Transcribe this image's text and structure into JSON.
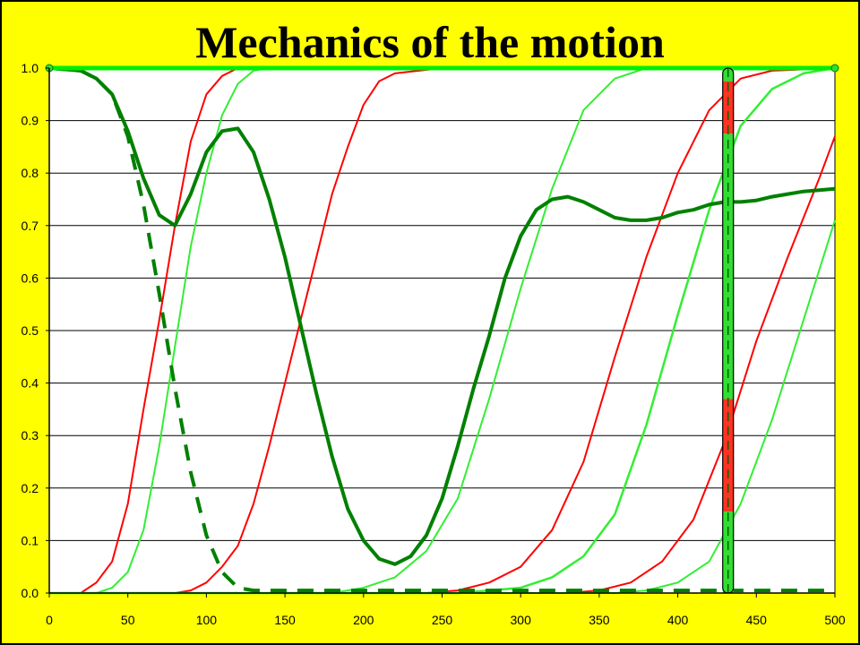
{
  "chart_data": {
    "type": "line",
    "title": "Mechanics of the motion",
    "xlabel": "",
    "ylabel": "",
    "xlim": [
      0,
      500
    ],
    "ylim": [
      0,
      1
    ],
    "xticks": [
      0,
      50,
      100,
      150,
      200,
      250,
      300,
      350,
      400,
      450,
      500
    ],
    "yticks": [
      "0.0",
      "0.1",
      "0.2",
      "0.3",
      "0.4",
      "0.5",
      "0.6",
      "0.7",
      "0.8",
      "0.9",
      "1.0"
    ],
    "grid": "horizontal",
    "background": "#ffff00",
    "plot_background": "#ffffff",
    "series": [
      {
        "color": "#ff0000",
        "width": 2,
        "dash": "",
        "points": [
          [
            0,
            0
          ],
          [
            20,
            0
          ],
          [
            30,
            0.02
          ],
          [
            40,
            0.06
          ],
          [
            50,
            0.17
          ],
          [
            60,
            0.35
          ],
          [
            70,
            0.52
          ],
          [
            80,
            0.7
          ],
          [
            90,
            0.86
          ],
          [
            100,
            0.95
          ],
          [
            110,
            0.985
          ],
          [
            120,
            1.0
          ],
          [
            500,
            1.0
          ]
        ]
      },
      {
        "color": "#33ee33",
        "width": 2,
        "dash": "",
        "points": [
          [
            0,
            0
          ],
          [
            30,
            0
          ],
          [
            40,
            0.01
          ],
          [
            50,
            0.04
          ],
          [
            60,
            0.12
          ],
          [
            70,
            0.28
          ],
          [
            80,
            0.47
          ],
          [
            90,
            0.66
          ],
          [
            100,
            0.8
          ],
          [
            110,
            0.91
          ],
          [
            120,
            0.97
          ],
          [
            130,
            0.995
          ],
          [
            140,
            1.0
          ],
          [
            500,
            1.0
          ]
        ]
      },
      {
        "color": "#ff0000",
        "width": 2,
        "dash": "",
        "points": [
          [
            0,
            0
          ],
          [
            80,
            0
          ],
          [
            90,
            0.005
          ],
          [
            100,
            0.02
          ],
          [
            110,
            0.05
          ],
          [
            120,
            0.09
          ],
          [
            130,
            0.17
          ],
          [
            140,
            0.28
          ],
          [
            150,
            0.4
          ],
          [
            160,
            0.52
          ],
          [
            170,
            0.64
          ],
          [
            180,
            0.76
          ],
          [
            190,
            0.85
          ],
          [
            200,
            0.93
          ],
          [
            210,
            0.975
          ],
          [
            220,
            0.99
          ],
          [
            250,
            1.0
          ],
          [
            500,
            1.0
          ]
        ]
      },
      {
        "color": "#33ee33",
        "width": 2,
        "dash": "",
        "points": [
          [
            0,
            0
          ],
          [
            150,
            0
          ],
          [
            180,
            0
          ],
          [
            200,
            0.01
          ],
          [
            220,
            0.03
          ],
          [
            240,
            0.08
          ],
          [
            260,
            0.18
          ],
          [
            280,
            0.37
          ],
          [
            300,
            0.58
          ],
          [
            320,
            0.77
          ],
          [
            340,
            0.92
          ],
          [
            360,
            0.98
          ],
          [
            380,
            1.0
          ],
          [
            500,
            1.0
          ]
        ]
      },
      {
        "color": "#ff0000",
        "width": 2,
        "dash": "",
        "points": [
          [
            0,
            0
          ],
          [
            240,
            0
          ],
          [
            260,
            0.005
          ],
          [
            280,
            0.02
          ],
          [
            300,
            0.05
          ],
          [
            320,
            0.12
          ],
          [
            340,
            0.25
          ],
          [
            360,
            0.45
          ],
          [
            380,
            0.64
          ],
          [
            400,
            0.8
          ],
          [
            420,
            0.92
          ],
          [
            440,
            0.98
          ],
          [
            460,
            0.995
          ],
          [
            500,
            1.0
          ]
        ]
      },
      {
        "color": "#33ee33",
        "width": 2.5,
        "dash": "",
        "points": [
          [
            0,
            0
          ],
          [
            260,
            0
          ],
          [
            280,
            0.005
          ],
          [
            300,
            0.01
          ],
          [
            320,
            0.03
          ],
          [
            340,
            0.07
          ],
          [
            360,
            0.15
          ],
          [
            380,
            0.32
          ],
          [
            400,
            0.53
          ],
          [
            420,
            0.73
          ],
          [
            440,
            0.89
          ],
          [
            460,
            0.96
          ],
          [
            480,
            0.99
          ],
          [
            500,
            1.0
          ]
        ]
      },
      {
        "color": "#ff0000",
        "width": 2,
        "dash": "",
        "points": [
          [
            0,
            0
          ],
          [
            330,
            0
          ],
          [
            350,
            0.005
          ],
          [
            370,
            0.02
          ],
          [
            390,
            0.06
          ],
          [
            410,
            0.14
          ],
          [
            430,
            0.29
          ],
          [
            450,
            0.48
          ],
          [
            470,
            0.64
          ],
          [
            490,
            0.79
          ],
          [
            500,
            0.87
          ]
        ]
      },
      {
        "color": "#33ee33",
        "width": 2,
        "dash": "",
        "points": [
          [
            0,
            0
          ],
          [
            360,
            0
          ],
          [
            380,
            0.005
          ],
          [
            400,
            0.02
          ],
          [
            420,
            0.06
          ],
          [
            440,
            0.17
          ],
          [
            460,
            0.33
          ],
          [
            480,
            0.52
          ],
          [
            500,
            0.71
          ]
        ]
      },
      {
        "color": "#008000",
        "width": 4,
        "dash": "",
        "points": [
          [
            0,
            1.0
          ],
          [
            20,
            0.995
          ],
          [
            30,
            0.98
          ],
          [
            40,
            0.95
          ],
          [
            50,
            0.88
          ],
          [
            60,
            0.79
          ],
          [
            70,
            0.72
          ],
          [
            80,
            0.7
          ],
          [
            90,
            0.76
          ],
          [
            100,
            0.84
          ],
          [
            110,
            0.88
          ],
          [
            120,
            0.885
          ],
          [
            130,
            0.84
          ],
          [
            140,
            0.75
          ],
          [
            150,
            0.64
          ],
          [
            160,
            0.51
          ],
          [
            170,
            0.38
          ],
          [
            180,
            0.26
          ],
          [
            190,
            0.16
          ],
          [
            200,
            0.1
          ],
          [
            210,
            0.065
          ],
          [
            220,
            0.055
          ],
          [
            230,
            0.07
          ],
          [
            240,
            0.11
          ],
          [
            250,
            0.18
          ],
          [
            260,
            0.28
          ],
          [
            270,
            0.39
          ],
          [
            280,
            0.49
          ],
          [
            290,
            0.6
          ],
          [
            300,
            0.68
          ],
          [
            310,
            0.73
          ],
          [
            320,
            0.75
          ],
          [
            330,
            0.755
          ],
          [
            340,
            0.745
          ],
          [
            350,
            0.73
          ],
          [
            360,
            0.715
          ],
          [
            370,
            0.71
          ],
          [
            380,
            0.71
          ],
          [
            390,
            0.715
          ],
          [
            400,
            0.725
          ],
          [
            410,
            0.73
          ],
          [
            420,
            0.74
          ],
          [
            430,
            0.745
          ],
          [
            440,
            0.745
          ],
          [
            450,
            0.748
          ],
          [
            460,
            0.755
          ],
          [
            470,
            0.76
          ],
          [
            480,
            0.765
          ],
          [
            500,
            0.77
          ]
        ]
      },
      {
        "color": "#008000",
        "width": 4,
        "dash": "18,12",
        "points": [
          [
            0,
            1.0
          ],
          [
            20,
            0.995
          ],
          [
            30,
            0.98
          ],
          [
            40,
            0.95
          ],
          [
            50,
            0.87
          ],
          [
            60,
            0.74
          ],
          [
            70,
            0.57
          ],
          [
            80,
            0.39
          ],
          [
            90,
            0.23
          ],
          [
            100,
            0.11
          ],
          [
            110,
            0.04
          ],
          [
            120,
            0.01
          ],
          [
            130,
            0.005
          ],
          [
            500,
            0.005
          ]
        ]
      },
      {
        "color": "#00ee00",
        "width": 5,
        "dash": "",
        "points": [
          [
            0,
            1.0
          ],
          [
            500,
            1.0
          ]
        ]
      }
    ],
    "endpoint_markers": [
      [
        0,
        1.0
      ],
      [
        500,
        1.0
      ]
    ],
    "marker_bar": {
      "x": 432,
      "segments": [
        {
          "from": 0,
          "to": 0.155,
          "color": "#33dd33"
        },
        {
          "from": 0.155,
          "to": 0.37,
          "color": "#ff3322"
        },
        {
          "from": 0.37,
          "to": 0.875,
          "color": "#33dd33"
        },
        {
          "from": 0.875,
          "to": 0.975,
          "color": "#ff3322"
        },
        {
          "from": 0.975,
          "to": 1.0,
          "color": "#33dd33"
        }
      ]
    }
  }
}
